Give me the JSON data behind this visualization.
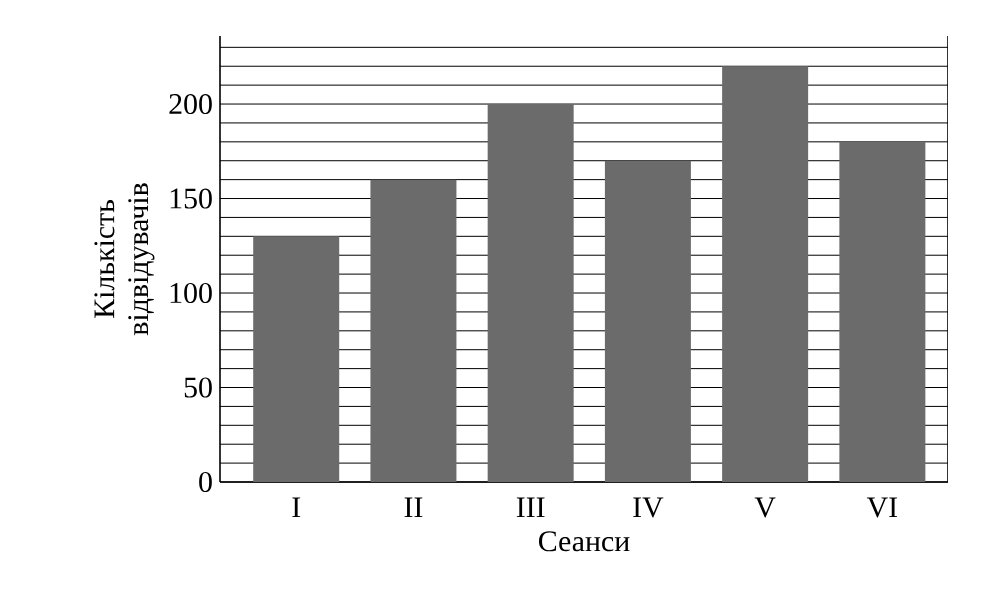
{
  "chart_data": {
    "type": "bar",
    "xlabel": "Сеанси",
    "ylabel": "Кількість відвідувачів",
    "categories": [
      "I",
      "II",
      "III",
      "IV",
      "V",
      "VI"
    ],
    "values": [
      130,
      160,
      200,
      170,
      220,
      180
    ],
    "color": "#6b6b6b",
    "ylim": [
      0,
      236
    ],
    "yticks": [
      0,
      {
        "value": 10,
        "label": null
      },
      {
        "value": 20,
        "label": null
      },
      {
        "value": 30,
        "label": null
      },
      {
        "value": 40,
        "label": null
      },
      50,
      {
        "value": 60,
        "label": null
      },
      {
        "value": 70,
        "label": null
      },
      {
        "value": 80,
        "label": null
      },
      {
        "value": 90,
        "label": null
      },
      100,
      {
        "value": 110,
        "label": null
      },
      {
        "value": 120,
        "label": null
      },
      {
        "value": 130,
        "label": null
      },
      {
        "value": 140,
        "label": null
      },
      150,
      {
        "value": 160,
        "label": null
      },
      {
        "value": 170,
        "label": null
      },
      {
        "value": 180,
        "label": null
      },
      {
        "value": 190,
        "label": null
      },
      200,
      {
        "value": 210,
        "label": null
      },
      {
        "value": 220,
        "label": null
      },
      {
        "value": 230,
        "label": null
      }
    ],
    "grid": "y"
  }
}
